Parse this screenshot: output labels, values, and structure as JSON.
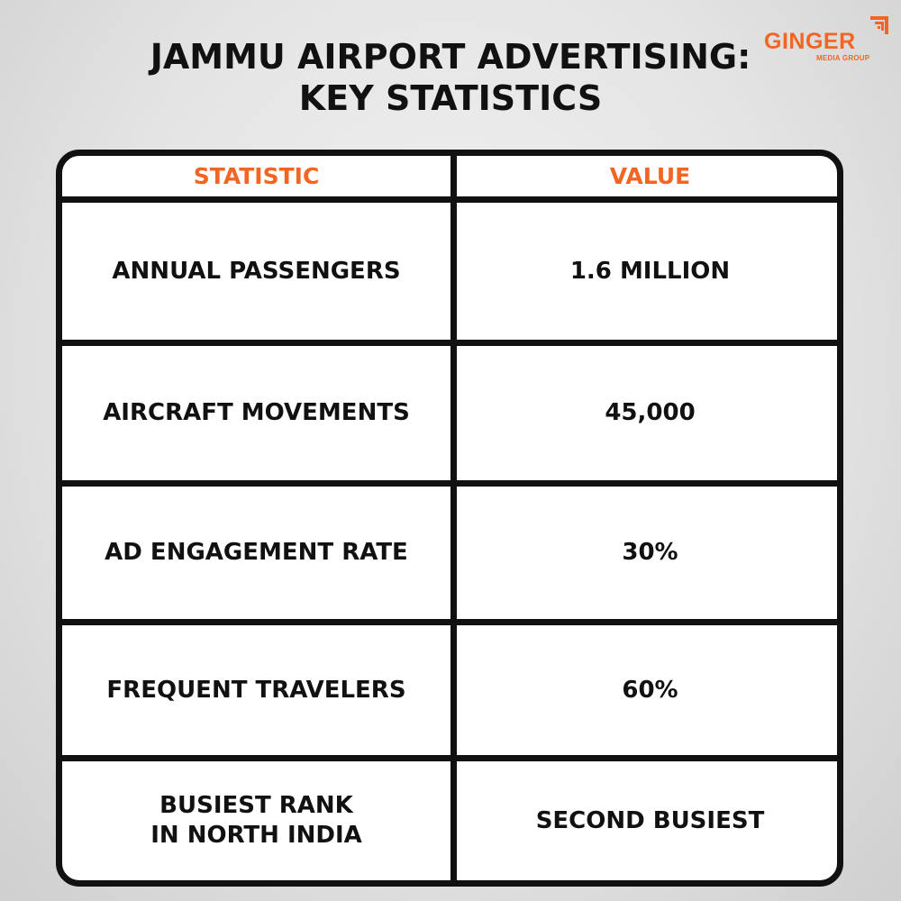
{
  "title": {
    "line1": "JAMMU AIRPORT ADVERTISING:",
    "line2": "KEY STATISTICS"
  },
  "logo": {
    "word": "GINGER",
    "sub": "MEDIA GROUP",
    "color": "#f26522"
  },
  "table": {
    "headers": [
      "STATISTIC",
      "VALUE"
    ],
    "header_color": "#f26522",
    "rows": [
      {
        "statistic": "ANNUAL PASSENGERS",
        "value": "1.6 MILLION"
      },
      {
        "statistic": "AIRCRAFT MOVEMENTS",
        "value": "45,000"
      },
      {
        "statistic": "AD ENGAGEMENT RATE",
        "value": "30%"
      },
      {
        "statistic": "FREQUENT TRAVELERS",
        "value": "60%"
      },
      {
        "statistic": "BUSIEST RANK IN NORTH INDIA",
        "value": "SECOND BUSIEST"
      }
    ]
  }
}
